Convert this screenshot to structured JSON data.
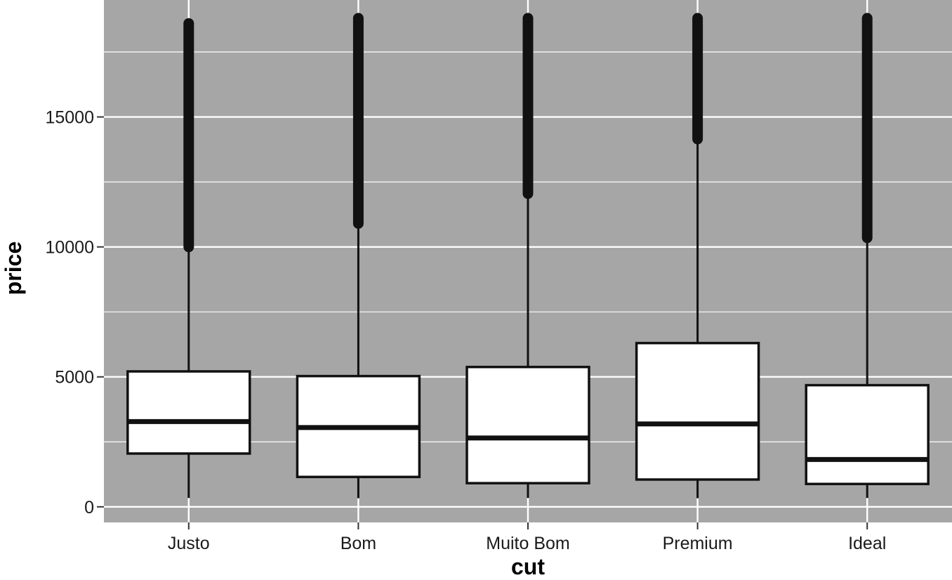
{
  "chart_data": {
    "type": "boxplot",
    "title": "",
    "xlabel": "cut",
    "ylabel": "price",
    "categories": [
      "Justo",
      "Bom",
      "Muito Bom",
      "Premium",
      "Ideal"
    ],
    "ylim": [
      -600,
      19500
    ],
    "yticks": [
      0,
      5000,
      10000,
      15000
    ],
    "ytick_labels": [
      "0",
      "5000",
      "10000",
      "15000"
    ],
    "grid": true,
    "background": "#a6a6a6",
    "box_color": "#ffffff",
    "line_color": "#111111",
    "boxes": [
      {
        "category": "Justo",
        "whisker_low": 340,
        "q1": 2050,
        "median": 3280,
        "q3": 5210,
        "whisker_high": 10000,
        "outliers_min": 10000,
        "outliers_max": 18600
      },
      {
        "category": "Bom",
        "whisker_low": 330,
        "q1": 1150,
        "median": 3050,
        "q3": 5030,
        "whisker_high": 10900,
        "outliers_min": 10900,
        "outliers_max": 18800
      },
      {
        "category": "Muito Bom",
        "whisker_low": 340,
        "q1": 910,
        "median": 2650,
        "q3": 5380,
        "whisker_high": 12050,
        "outliers_min": 12050,
        "outliers_max": 18800
      },
      {
        "category": "Premium",
        "whisker_low": 330,
        "q1": 1050,
        "median": 3190,
        "q3": 6300,
        "whisker_high": 14150,
        "outliers_min": 14150,
        "outliers_max": 18800
      },
      {
        "category": "Ideal",
        "whisker_low": 340,
        "q1": 880,
        "median": 1820,
        "q3": 4680,
        "whisker_high": 10350,
        "outliers_min": 10350,
        "outliers_max": 18800
      }
    ]
  }
}
